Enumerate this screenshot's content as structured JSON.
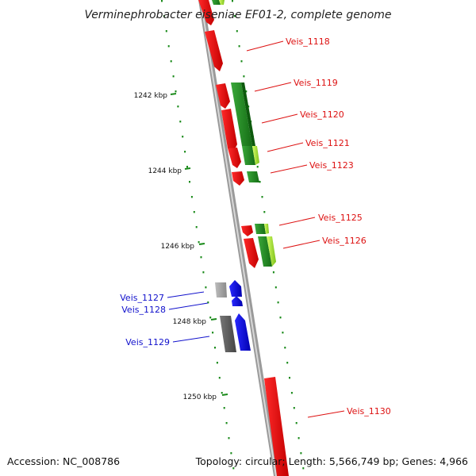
{
  "title": "Verminephrobacter eiseniae EF01-2, complete genome",
  "footer": {
    "accession": "Accession: NC_008786",
    "summary": "Topology: circular; Length: 5,566,749 bp; Genes: 4,966"
  },
  "ticks": [
    {
      "label": "1242 kbp"
    },
    {
      "label": "1244 kbp"
    },
    {
      "label": "1246 kbp"
    },
    {
      "label": "1248 kbp"
    },
    {
      "label": "1250 kbp"
    }
  ],
  "genes": [
    {
      "label": "Veis_1118",
      "color": "#dd1111"
    },
    {
      "label": "Veis_1119",
      "color": "#dd1111"
    },
    {
      "label": "Veis_1120",
      "color": "#dd1111"
    },
    {
      "label": "Veis_1121",
      "color": "#dd1111"
    },
    {
      "label": "Veis_1123",
      "color": "#dd1111"
    },
    {
      "label": "Veis_1125",
      "color": "#dd1111"
    },
    {
      "label": "Veis_1126",
      "color": "#dd1111"
    },
    {
      "label": "Veis_1127",
      "color": "#1111cc"
    },
    {
      "label": "Veis_1128",
      "color": "#1111cc"
    },
    {
      "label": "Veis_1129",
      "color": "#1111cc"
    },
    {
      "label": "Veis_1130",
      "color": "#dd1111"
    }
  ],
  "colors": {
    "forward_strand": "#ff0000",
    "reverse_strand": "#0000ff",
    "backbone": "#888888",
    "orf_green": "#1a8a1a",
    "orf_lime": "#a6e22e",
    "gc_dots": "#1a8a1a"
  }
}
